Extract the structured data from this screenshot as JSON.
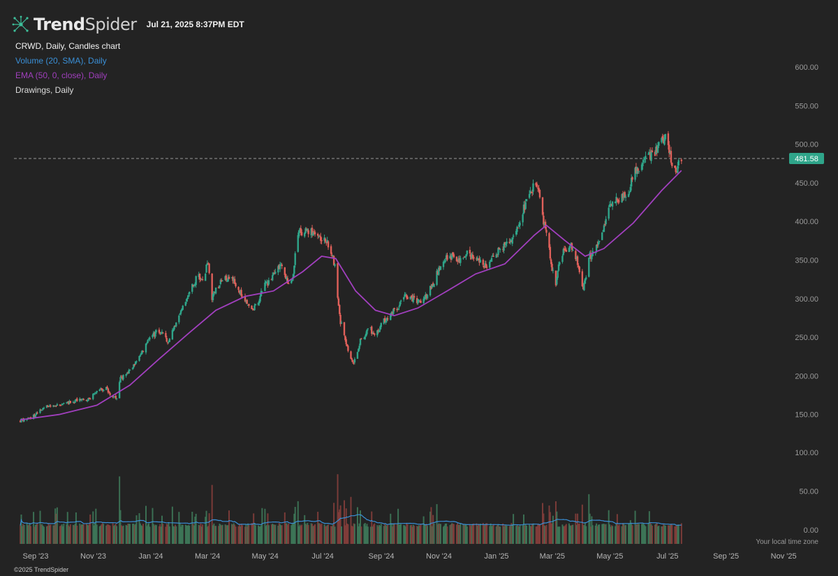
{
  "header": {
    "logo_bold": "Trend",
    "logo_thin": "Spider",
    "timestamp": "Jul 21, 2025 8:37PM EDT"
  },
  "legend": {
    "title": "CRWD, Daily, Candles chart",
    "volume": "Volume (20, SMA), Daily",
    "ema": "EMA (50, 0, close), Daily",
    "drawings": "Drawings, Daily"
  },
  "footer": {
    "copyright": "©2025 TrendSpider"
  },
  "timezone_label": "Your local time zone",
  "colors": {
    "background": "#232323",
    "up": "#2fa58a",
    "down": "#e0605a",
    "ema": "#a13fbe",
    "volume_sma": "#3a8fd6",
    "price_label_bg": "#2fa58a"
  },
  "chart_data": {
    "type": "candlestick",
    "symbol": "CRWD",
    "timeframe": "Daily",
    "last_price": "481.58",
    "price_axis": {
      "ticks": [
        "600.00",
        "550.00",
        "500.00",
        "450.00",
        "400.00",
        "350.00",
        "300.00",
        "250.00",
        "200.00",
        "150.00"
      ],
      "ylim": [
        130,
        615
      ]
    },
    "volume_axis": {
      "ticks": [
        "100.00",
        "50.00",
        "0.00"
      ],
      "unit": "M"
    },
    "x_axis": {
      "ticks": [
        "Sep '23",
        "Nov '23",
        "Jan '24",
        "Mar '24",
        "May '24",
        "Jul '24",
        "Sep '24",
        "Nov '24",
        "Jan '25",
        "Mar '25",
        "May '25",
        "Jul '25",
        "Sep '25",
        "Nov '25"
      ]
    },
    "price_path": [
      [
        "2023-08-21",
        142
      ],
      [
        "2023-09-05",
        148
      ],
      [
        "2023-09-15",
        160
      ],
      [
        "2023-10-01",
        163
      ],
      [
        "2023-10-20",
        168
      ],
      [
        "2023-11-01",
        170
      ],
      [
        "2023-11-10",
        180
      ],
      [
        "2023-11-20",
        184
      ],
      [
        "2023-11-25",
        176
      ],
      [
        "2023-12-01",
        172
      ],
      [
        "2023-12-05",
        196
      ],
      [
        "2023-12-15",
        206
      ],
      [
        "2023-12-25",
        225
      ],
      [
        "2024-01-05",
        250
      ],
      [
        "2024-01-15",
        258
      ],
      [
        "2024-01-25",
        245
      ],
      [
        "2024-02-01",
        268
      ],
      [
        "2024-02-15",
        305
      ],
      [
        "2024-02-25",
        330
      ],
      [
        "2024-03-01",
        320
      ],
      [
        "2024-03-07",
        350
      ],
      [
        "2024-03-10",
        300
      ],
      [
        "2024-03-20",
        322
      ],
      [
        "2024-04-01",
        330
      ],
      [
        "2024-04-15",
        295
      ],
      [
        "2024-04-25",
        288
      ],
      [
        "2024-05-05",
        315
      ],
      [
        "2024-05-15",
        330
      ],
      [
        "2024-05-25",
        345
      ],
      [
        "2024-06-01",
        310
      ],
      [
        "2024-06-05",
        335
      ],
      [
        "2024-06-10",
        385
      ],
      [
        "2024-06-20",
        390
      ],
      [
        "2024-06-30",
        380
      ],
      [
        "2024-07-10",
        375
      ],
      [
        "2024-07-19",
        345
      ],
      [
        "2024-07-22",
        300
      ],
      [
        "2024-07-25",
        270
      ],
      [
        "2024-08-01",
        240
      ],
      [
        "2024-08-05",
        220
      ],
      [
        "2024-08-08",
        215
      ],
      [
        "2024-08-15",
        245
      ],
      [
        "2024-08-25",
        262
      ],
      [
        "2024-08-31",
        250
      ],
      [
        "2024-09-05",
        265
      ],
      [
        "2024-09-15",
        280
      ],
      [
        "2024-09-25",
        290
      ],
      [
        "2024-10-01",
        305
      ],
      [
        "2024-10-10",
        300
      ],
      [
        "2024-10-20",
        295
      ],
      [
        "2024-10-31",
        320
      ],
      [
        "2024-11-10",
        350
      ],
      [
        "2024-11-20",
        355
      ],
      [
        "2024-11-25",
        345
      ],
      [
        "2024-12-05",
        360
      ],
      [
        "2024-12-15",
        350
      ],
      [
        "2024-12-25",
        342
      ],
      [
        "2025-01-10",
        365
      ],
      [
        "2025-01-25",
        380
      ],
      [
        "2025-02-05",
        420
      ],
      [
        "2025-02-15",
        448
      ],
      [
        "2025-02-20",
        445
      ],
      [
        "2025-02-25",
        400
      ],
      [
        "2025-03-01",
        380
      ],
      [
        "2025-03-05",
        345
      ],
      [
        "2025-03-10",
        320
      ],
      [
        "2025-03-15",
        355
      ],
      [
        "2025-03-25",
        370
      ],
      [
        "2025-04-01",
        350
      ],
      [
        "2025-04-05",
        325
      ],
      [
        "2025-04-08",
        310
      ],
      [
        "2025-04-15",
        355
      ],
      [
        "2025-04-25",
        370
      ],
      [
        "2025-05-05",
        420
      ],
      [
        "2025-05-15",
        430
      ],
      [
        "2025-05-25",
        435
      ],
      [
        "2025-06-01",
        462
      ],
      [
        "2025-06-10",
        478
      ],
      [
        "2025-06-20",
        485
      ],
      [
        "2025-07-01",
        505
      ],
      [
        "2025-07-06",
        508
      ],
      [
        "2025-07-10",
        478
      ],
      [
        "2025-07-15",
        468
      ],
      [
        "2025-07-21",
        481.58
      ]
    ],
    "ema_path": [
      [
        "2023-08-21",
        143
      ],
      [
        "2023-10-01",
        150
      ],
      [
        "2023-11-10",
        162
      ],
      [
        "2023-12-15",
        188
      ],
      [
        "2024-01-15",
        222
      ],
      [
        "2024-02-15",
        255
      ],
      [
        "2024-03-15",
        285
      ],
      [
        "2024-04-15",
        303
      ],
      [
        "2024-05-15",
        310
      ],
      [
        "2024-06-15",
        335
      ],
      [
        "2024-07-05",
        355
      ],
      [
        "2024-07-20",
        352
      ],
      [
        "2024-08-10",
        310
      ],
      [
        "2024-08-31",
        285
      ],
      [
        "2024-09-20",
        278
      ],
      [
        "2024-10-15",
        288
      ],
      [
        "2024-11-15",
        310
      ],
      [
        "2024-12-15",
        332
      ],
      [
        "2025-01-15",
        345
      ],
      [
        "2025-02-15",
        382
      ],
      [
        "2025-02-28",
        395
      ],
      [
        "2025-03-20",
        375
      ],
      [
        "2025-04-10",
        355
      ],
      [
        "2025-04-30",
        365
      ],
      [
        "2025-05-31",
        398
      ],
      [
        "2025-06-30",
        440
      ],
      [
        "2025-07-21",
        466
      ]
    ]
  }
}
